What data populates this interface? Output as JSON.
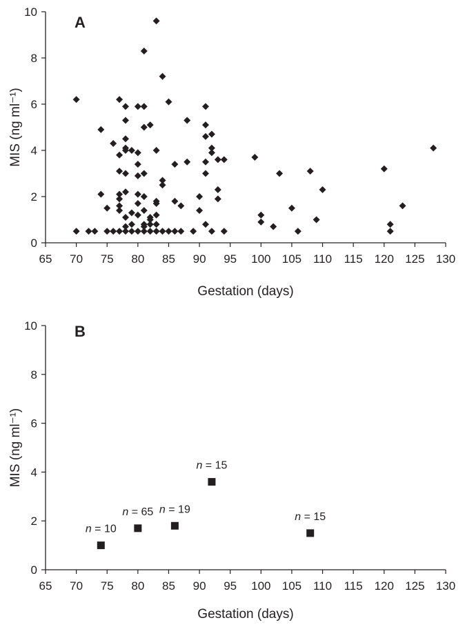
{
  "colors": {
    "axis": "#231f20",
    "marker": "#231f20",
    "background": "#ffffff"
  },
  "chart_data": [
    {
      "panel": "A",
      "type": "scatter",
      "marker": "diamond",
      "xlabel": "Gestation (days)",
      "ylabel": "MIS (ng ml⁻¹)",
      "xlim": [
        65,
        130
      ],
      "ylim": [
        0,
        10
      ],
      "xticks": [
        "65",
        "70",
        "75",
        "80",
        "85",
        "90",
        "95",
        "100",
        "105",
        "110",
        "115",
        "120",
        "125",
        "130"
      ],
      "yticks": [
        "0",
        "2",
        "4",
        "6",
        "8",
        "10"
      ],
      "grid": false,
      "points": [
        [
          70,
          6.2
        ],
        [
          70,
          0.5
        ],
        [
          72,
          0.5
        ],
        [
          73,
          0.5
        ],
        [
          74,
          4.9
        ],
        [
          74,
          2.1
        ],
        [
          75,
          1.5
        ],
        [
          75,
          0.5
        ],
        [
          76,
          4.3
        ],
        [
          76,
          0.5
        ],
        [
          77,
          6.2
        ],
        [
          77,
          3.8
        ],
        [
          77,
          3.1
        ],
        [
          77,
          2.1
        ],
        [
          77,
          1.9
        ],
        [
          77,
          1.6
        ],
        [
          77,
          1.4
        ],
        [
          77,
          0.5
        ],
        [
          78,
          5.9
        ],
        [
          78,
          5.3
        ],
        [
          78,
          4.5
        ],
        [
          78,
          4.1
        ],
        [
          78,
          4.0
        ],
        [
          78,
          3.0
        ],
        [
          78,
          2.2
        ],
        [
          78,
          1.1
        ],
        [
          78,
          0.7
        ],
        [
          78,
          0.5
        ],
        [
          79,
          4.0
        ],
        [
          79,
          1.3
        ],
        [
          79,
          0.8
        ],
        [
          79,
          0.5
        ],
        [
          80,
          5.9
        ],
        [
          80,
          3.9
        ],
        [
          80,
          3.4
        ],
        [
          80,
          2.9
        ],
        [
          80,
          2.1
        ],
        [
          80,
          1.7
        ],
        [
          80,
          1.2
        ],
        [
          80,
          0.5
        ],
        [
          81,
          8.3
        ],
        [
          81,
          5.9
        ],
        [
          81,
          5.0
        ],
        [
          81,
          3.0
        ],
        [
          81,
          2.0
        ],
        [
          81,
          1.4
        ],
        [
          81,
          0.8
        ],
        [
          81,
          0.7
        ],
        [
          81,
          0.5
        ],
        [
          82,
          5.1
        ],
        [
          82,
          1.1
        ],
        [
          82,
          1.0
        ],
        [
          82,
          0.8
        ],
        [
          82,
          0.5
        ],
        [
          83,
          9.6
        ],
        [
          83,
          4.0
        ],
        [
          83,
          1.8
        ],
        [
          83,
          1.7
        ],
        [
          83,
          1.2
        ],
        [
          83,
          0.8
        ],
        [
          83,
          0.5
        ],
        [
          84,
          7.2
        ],
        [
          84,
          2.7
        ],
        [
          84,
          2.5
        ],
        [
          84,
          0.5
        ],
        [
          85,
          6.1
        ],
        [
          85,
          0.5
        ],
        [
          86,
          3.4
        ],
        [
          86,
          1.8
        ],
        [
          86,
          0.5
        ],
        [
          87,
          1.6
        ],
        [
          87,
          0.5
        ],
        [
          88,
          5.3
        ],
        [
          88,
          3.5
        ],
        [
          89,
          0.5
        ],
        [
          90,
          2.0
        ],
        [
          90,
          1.4
        ],
        [
          91,
          5.9
        ],
        [
          91,
          5.1
        ],
        [
          91,
          4.6
        ],
        [
          91,
          3.5
        ],
        [
          91,
          3.0
        ],
        [
          91,
          0.8
        ],
        [
          92,
          4.7
        ],
        [
          92,
          4.1
        ],
        [
          92,
          3.9
        ],
        [
          92,
          0.5
        ],
        [
          93,
          3.6
        ],
        [
          93,
          2.3
        ],
        [
          93,
          1.9
        ],
        [
          94,
          3.6
        ],
        [
          94,
          0.5
        ],
        [
          99,
          3.7
        ],
        [
          100,
          1.2
        ],
        [
          100,
          0.9
        ],
        [
          102,
          0.7
        ],
        [
          103,
          3.0
        ],
        [
          105,
          1.5
        ],
        [
          106,
          0.5
        ],
        [
          108,
          3.1
        ],
        [
          109,
          1.0
        ],
        [
          110,
          2.3
        ],
        [
          120,
          3.2
        ],
        [
          121,
          0.8
        ],
        [
          121,
          0.5
        ],
        [
          123,
          1.6
        ],
        [
          128,
          4.1
        ]
      ]
    },
    {
      "panel": "B",
      "type": "scatter",
      "marker": "square",
      "xlabel": "Gestation (days)",
      "ylabel": "MIS (ng ml⁻¹)",
      "xlim": [
        65,
        130
      ],
      "ylim": [
        0,
        10
      ],
      "xticks": [
        "65",
        "70",
        "75",
        "80",
        "85",
        "90",
        "95",
        "100",
        "105",
        "110",
        "115",
        "120",
        "125",
        "130"
      ],
      "yticks": [
        "0",
        "2",
        "4",
        "6",
        "8",
        "10"
      ],
      "grid": false,
      "points": [
        {
          "x": 74,
          "y": 1.0,
          "n_prefix": "n",
          "n_label": "= 10"
        },
        {
          "x": 80,
          "y": 1.7,
          "n_prefix": "n",
          "n_label": "= 65"
        },
        {
          "x": 86,
          "y": 1.8,
          "n_prefix": "n",
          "n_label": "= 19"
        },
        {
          "x": 92,
          "y": 3.6,
          "n_prefix": "n",
          "n_label": "= 15"
        },
        {
          "x": 108,
          "y": 1.5,
          "n_prefix": "n",
          "n_label": "= 15"
        }
      ]
    }
  ]
}
